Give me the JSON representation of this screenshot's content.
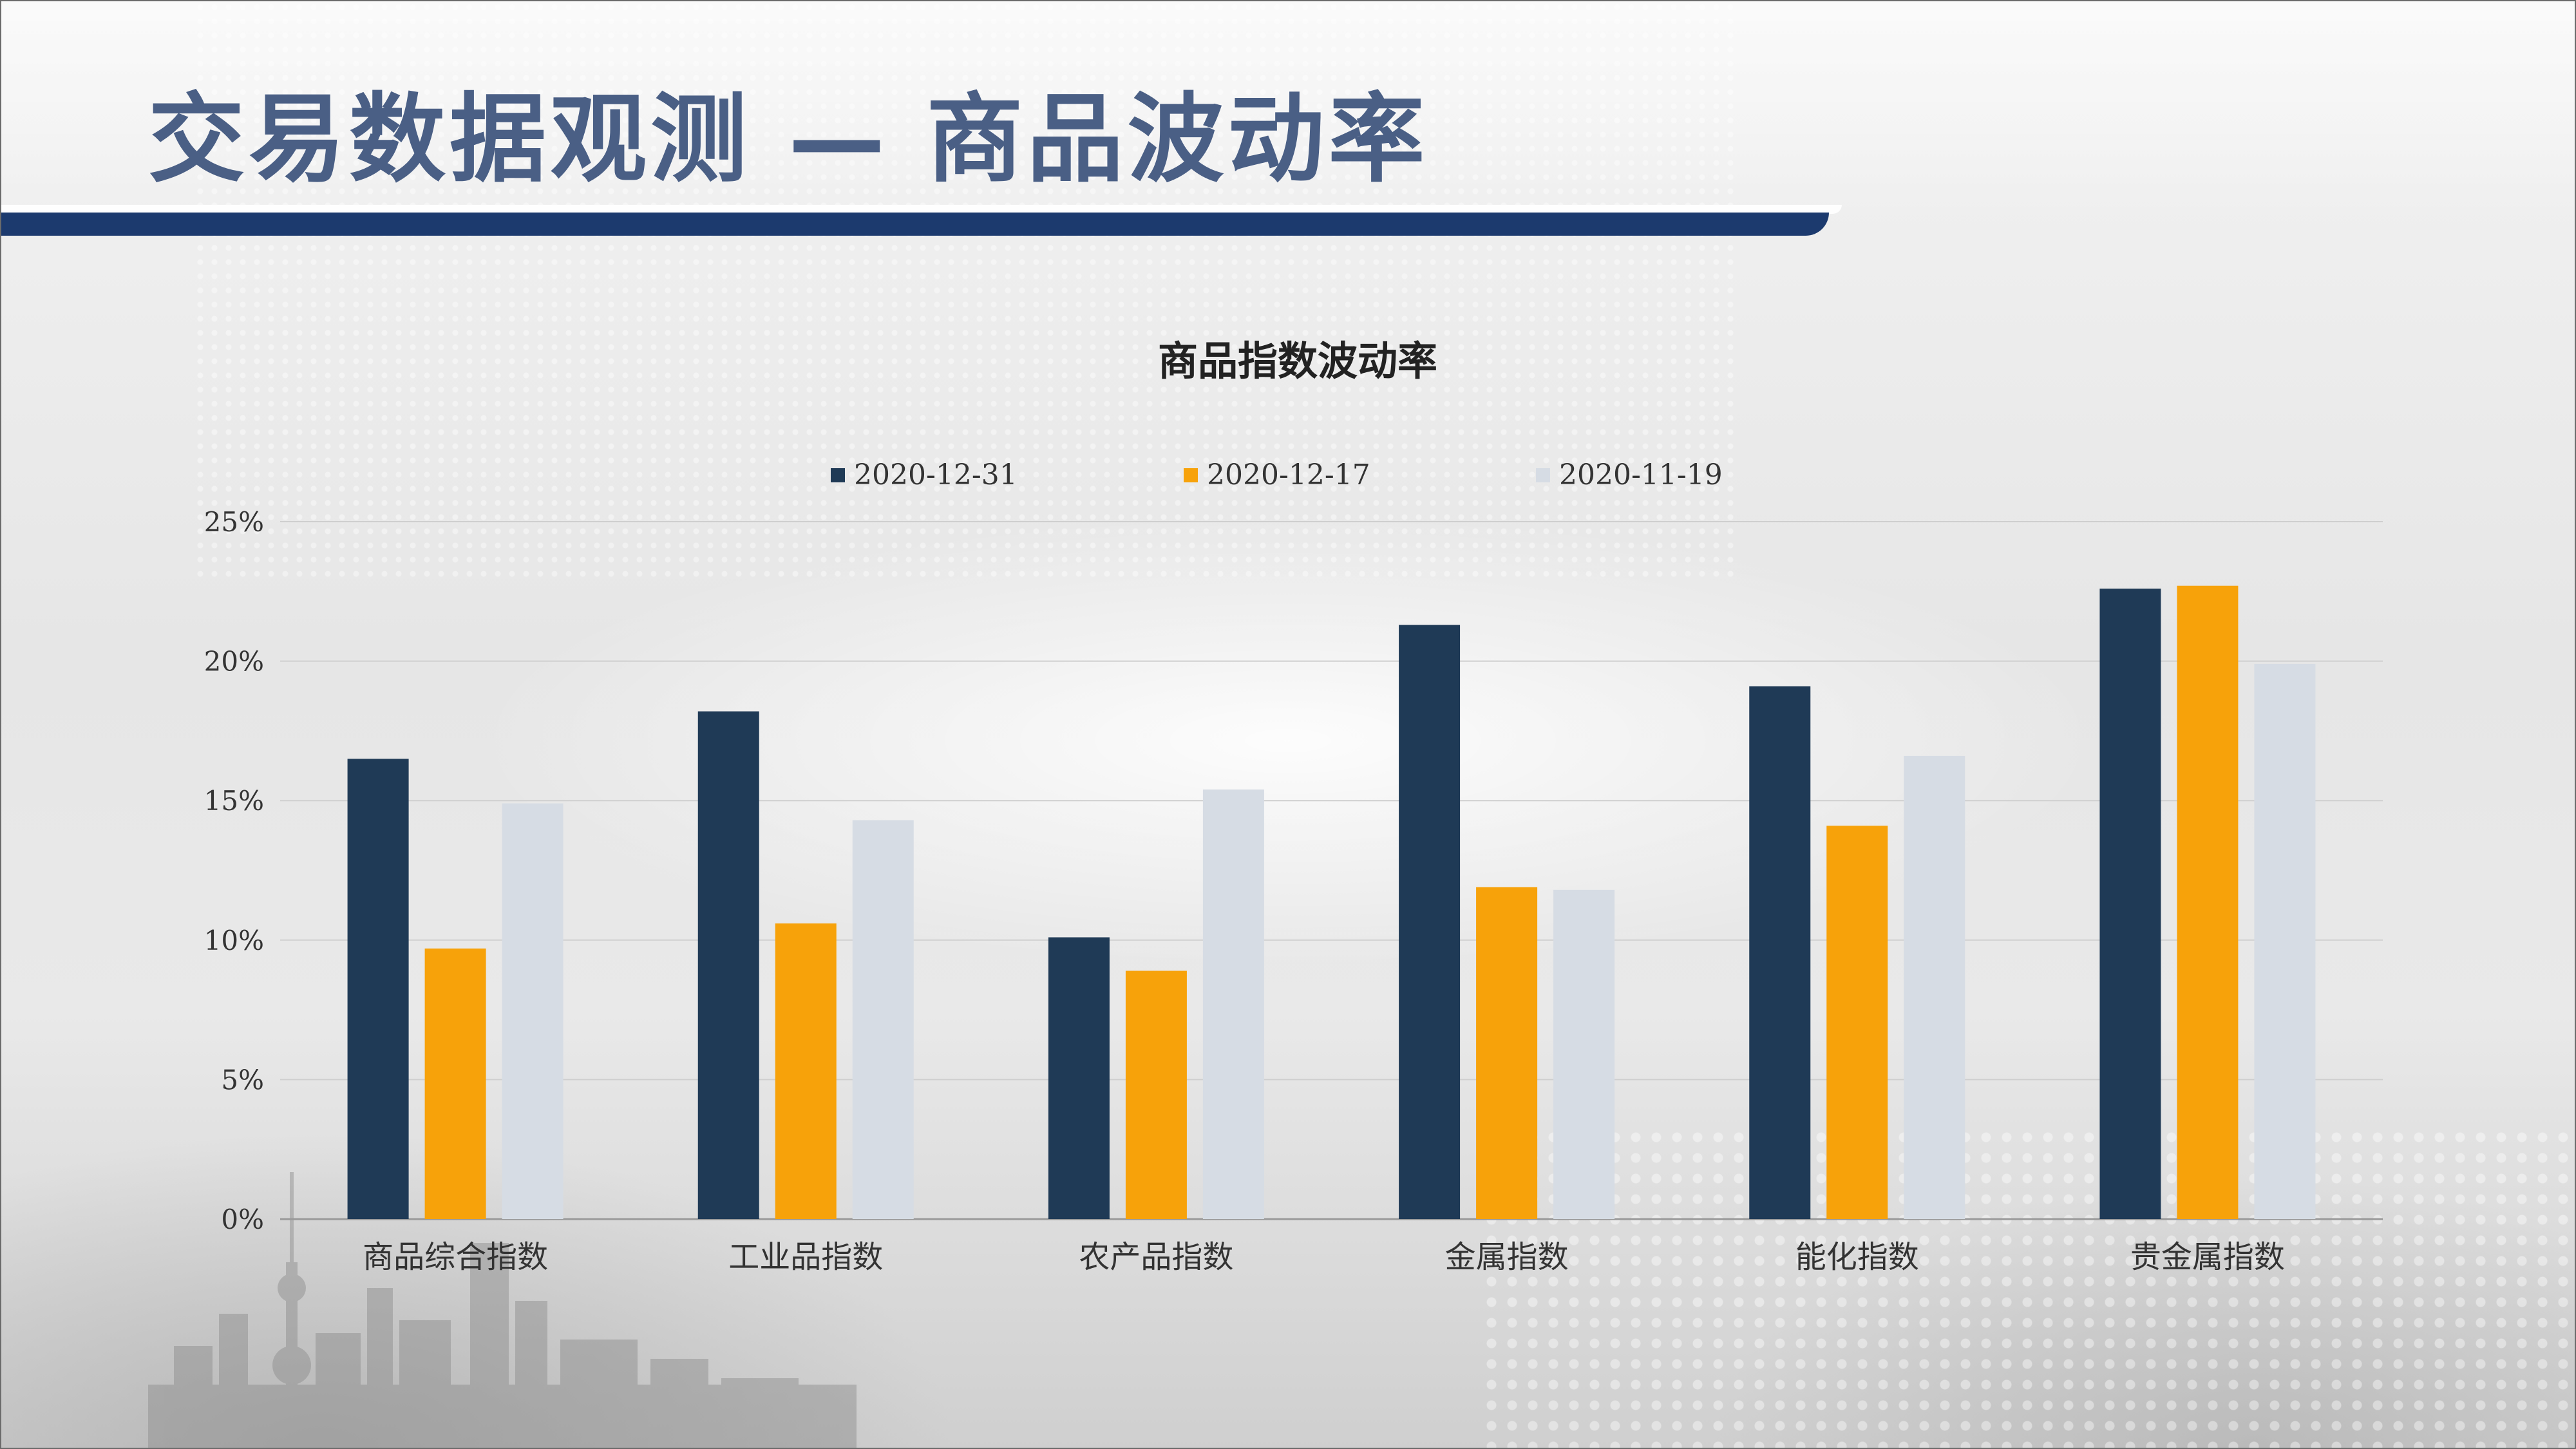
{
  "header": {
    "title": "交易数据观测 — 商品波动率"
  },
  "colors": {
    "title": "#4a5f85",
    "accent_bar": "#1c3a6e",
    "series": [
      "#1f3a56",
      "#f7a20a",
      "#d6dce4"
    ]
  },
  "chart_data": {
    "type": "bar",
    "title": "商品指数波动率",
    "xlabel": "",
    "ylabel": "",
    "ylim": [
      0,
      0.25
    ],
    "yticks": [
      0,
      0.05,
      0.1,
      0.15,
      0.2,
      0.25
    ],
    "ytick_labels": [
      "0%",
      "5%",
      "10%",
      "15%",
      "20%",
      "25%"
    ],
    "grid": true,
    "legend_position": "top",
    "categories": [
      "商品综合指数",
      "工业品指数",
      "农产品指数",
      "金属指数",
      "能化指数",
      "贵金属指数"
    ],
    "series": [
      {
        "name": "2020-12-31",
        "color": "#1f3a56",
        "values": [
          0.165,
          0.182,
          0.101,
          0.213,
          0.191,
          0.226
        ]
      },
      {
        "name": "2020-12-17",
        "color": "#f7a20a",
        "values": [
          0.097,
          0.106,
          0.089,
          0.119,
          0.141,
          0.227
        ]
      },
      {
        "name": "2020-11-19",
        "color": "#d6dce4",
        "values": [
          0.149,
          0.143,
          0.154,
          0.118,
          0.166,
          0.199
        ]
      }
    ]
  }
}
